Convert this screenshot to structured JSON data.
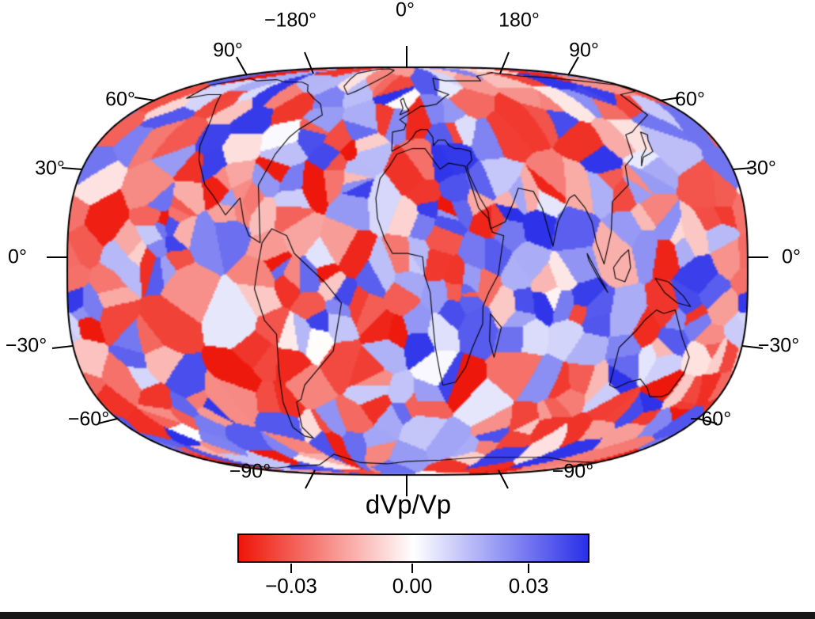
{
  "figure": {
    "title": "dVp/Vp",
    "background": "#ffffff"
  },
  "map": {
    "labels": {
      "top": [
        "−180°",
        "0°",
        "180°"
      ],
      "left": [
        "90°",
        "60°",
        "30°",
        "0°",
        "−30°",
        "−60°",
        "−90°"
      ],
      "right": [
        "90°",
        "60°",
        "30°",
        "0°",
        "−30°",
        "−60°",
        "−90°"
      ]
    }
  },
  "colorbar": {
    "label": "dVp/Vp",
    "ticks": [
      "−0.03",
      "0.00",
      "0.03"
    ],
    "min_color": "#ee1509",
    "mid_color": "#ffffff",
    "max_color": "#2a2fe9"
  },
  "chart_data": {
    "type": "heatmap",
    "title": "dVp/Vp",
    "projection": "global elliptical projection, central meridian 0°, flattened poles",
    "lon_ticks": [
      -180,
      0,
      180
    ],
    "lat_ticks": [
      90,
      60,
      30,
      0,
      -30,
      -60,
      -90
    ],
    "colorbar": {
      "label": "dVp/Vp",
      "tick_values": [
        -0.03,
        0.0,
        0.03
      ],
      "range": [
        -0.044,
        0.044
      ],
      "colormap": "polar red-white-blue (negative = red, positive = blue)"
    },
    "content": "Voronoi-cell mosaic of P-wave velocity perturbations dVp/Vp covering the globe, with world coastlines overlaid in black; cells saturate to deep red/blue with pale cells interspersed",
    "mosaic": {
      "cell_count": 430,
      "seed": 11,
      "lat_weight": 1.6,
      "value_exponent": 0.7
    }
  },
  "coastlines": [
    [
      [
        -168,
        66
      ],
      [
        -160,
        58
      ],
      [
        -150,
        60
      ],
      [
        -140,
        60
      ],
      [
        -132,
        55
      ],
      [
        -124,
        48
      ],
      [
        -120,
        38
      ],
      [
        -117,
        33
      ],
      [
        -110,
        25
      ],
      [
        -105,
        22
      ],
      [
        -97,
        16
      ],
      [
        -90,
        21
      ],
      [
        -87,
        14
      ],
      [
        -84,
        10
      ],
      [
        -78,
        8
      ],
      [
        -81,
        25
      ],
      [
        -75,
        35
      ],
      [
        -70,
        41
      ],
      [
        -66,
        44
      ],
      [
        -55,
        50
      ],
      [
        -60,
        55
      ],
      [
        -68,
        58
      ],
      [
        -78,
        62
      ],
      [
        -85,
        66
      ],
      [
        -95,
        68
      ],
      [
        -110,
        68
      ],
      [
        -125,
        70
      ],
      [
        -140,
        69
      ],
      [
        -155,
        71
      ],
      [
        -168,
        66
      ]
    ],
    [
      [
        -45,
        60
      ],
      [
        -53,
        65
      ],
      [
        -55,
        70
      ],
      [
        -60,
        76
      ],
      [
        -50,
        82
      ],
      [
        -35,
        83
      ],
      [
        -20,
        80
      ],
      [
        -22,
        74
      ],
      [
        -30,
        68
      ],
      [
        -40,
        62
      ],
      [
        -45,
        60
      ]
    ],
    [
      [
        -77,
        8
      ],
      [
        -79,
        2
      ],
      [
        -81,
        -5
      ],
      [
        -76,
        -14
      ],
      [
        -70,
        -18
      ],
      [
        -71,
        -30
      ],
      [
        -73,
        -40
      ],
      [
        -74,
        -50
      ],
      [
        -70,
        -54
      ],
      [
        -65,
        -55
      ],
      [
        -68,
        -50
      ],
      [
        -65,
        -40
      ],
      [
        -62,
        -39
      ],
      [
        -58,
        -34
      ],
      [
        -48,
        -28
      ],
      [
        -40,
        -23
      ],
      [
        -35,
        -9
      ],
      [
        -44,
        -3
      ],
      [
        -50,
        0
      ],
      [
        -60,
        5
      ],
      [
        -64,
        10
      ],
      [
        -72,
        12
      ],
      [
        -77,
        8
      ]
    ],
    [
      [
        -6,
        35
      ],
      [
        -10,
        31
      ],
      [
        -15,
        27
      ],
      [
        -17,
        21
      ],
      [
        -16,
        15
      ],
      [
        -12,
        9
      ],
      [
        -8,
        5
      ],
      [
        0,
        5
      ],
      [
        8,
        4
      ],
      [
        9,
        -1
      ],
      [
        12,
        -6
      ],
      [
        13,
        -12
      ],
      [
        15,
        -22
      ],
      [
        18,
        -30
      ],
      [
        20,
        -34
      ],
      [
        27,
        -33
      ],
      [
        32,
        -28
      ],
      [
        35,
        -22
      ],
      [
        40,
        -15
      ],
      [
        40,
        -10
      ],
      [
        43,
        -6
      ],
      [
        48,
        -1
      ],
      [
        51,
        10
      ],
      [
        45,
        11
      ],
      [
        43,
        15
      ],
      [
        38,
        18
      ],
      [
        35,
        24
      ],
      [
        32,
        31
      ],
      [
        23,
        32
      ],
      [
        18,
        30
      ],
      [
        10,
        37
      ],
      [
        3,
        37
      ],
      [
        -6,
        35
      ]
    ],
    [
      [
        -9,
        36
      ],
      [
        -9,
        43
      ],
      [
        -2,
        44
      ],
      [
        -1,
        46
      ],
      [
        -5,
        48
      ],
      [
        2,
        51
      ],
      [
        9,
        54
      ],
      [
        13,
        54
      ],
      [
        20,
        55
      ],
      [
        28,
        59
      ],
      [
        31,
        60
      ],
      [
        22,
        63
      ],
      [
        25,
        71
      ],
      [
        35,
        69
      ],
      [
        50,
        69
      ],
      [
        68,
        69
      ],
      [
        73,
        73
      ],
      [
        90,
        75
      ],
      [
        105,
        77
      ],
      [
        120,
        73
      ],
      [
        140,
        72
      ],
      [
        160,
        69
      ],
      [
        178,
        66
      ],
      [
        178,
        62
      ],
      [
        160,
        60
      ],
      [
        155,
        50
      ],
      [
        140,
        45
      ],
      [
        135,
        43
      ],
      [
        130,
        42
      ],
      [
        127,
        34
      ],
      [
        121,
        31
      ],
      [
        120,
        25
      ],
      [
        110,
        20
      ],
      [
        108,
        11
      ],
      [
        104,
        2
      ],
      [
        100,
        8
      ],
      [
        98,
        14
      ],
      [
        95,
        18
      ],
      [
        90,
        22
      ],
      [
        87,
        21
      ],
      [
        80,
        14
      ],
      [
        77,
        7
      ],
      [
        72,
        18
      ],
      [
        68,
        23
      ],
      [
        60,
        24
      ],
      [
        57,
        20
      ],
      [
        52,
        14
      ],
      [
        44,
        12
      ],
      [
        43,
        17
      ],
      [
        39,
        21
      ],
      [
        34,
        28
      ],
      [
        33,
        31
      ],
      [
        36,
        33
      ],
      [
        36,
        36
      ],
      [
        30,
        37
      ],
      [
        27,
        37
      ],
      [
        24,
        38
      ],
      [
        22,
        40
      ],
      [
        18,
        40
      ],
      [
        15,
        38
      ],
      [
        15,
        41
      ],
      [
        12,
        44
      ],
      [
        8,
        44
      ],
      [
        5,
        43
      ],
      [
        3,
        41
      ],
      [
        0,
        39
      ],
      [
        -6,
        37
      ],
      [
        -9,
        36
      ]
    ],
    [
      [
        114,
        -22
      ],
      [
        114,
        -34
      ],
      [
        118,
        -35
      ],
      [
        124,
        -33
      ],
      [
        130,
        -32
      ],
      [
        136,
        -35
      ],
      [
        140,
        -38
      ],
      [
        147,
        -38
      ],
      [
        150,
        -37
      ],
      [
        153,
        -30
      ],
      [
        153,
        -25
      ],
      [
        147,
        -19
      ],
      [
        142,
        -11
      ],
      [
        136,
        -12
      ],
      [
        132,
        -11
      ],
      [
        126,
        -14
      ],
      [
        122,
        -17
      ],
      [
        114,
        -22
      ]
    ],
    [
      [
        -180,
        -70
      ],
      [
        -150,
        -75
      ],
      [
        -120,
        -73
      ],
      [
        -90,
        -72
      ],
      [
        -60,
        -64
      ],
      [
        -45,
        -70
      ],
      [
        -20,
        -71
      ],
      [
        0,
        -69
      ],
      [
        30,
        -68
      ],
      [
        60,
        -66
      ],
      [
        90,
        -66
      ],
      [
        120,
        -66
      ],
      [
        150,
        -69
      ],
      [
        180,
        -70
      ]
    ],
    [
      [
        44,
        -12
      ],
      [
        50,
        -16
      ],
      [
        47,
        -25
      ],
      [
        44,
        -20
      ],
      [
        44,
        -12
      ]
    ],
    [
      [
        130,
        31
      ],
      [
        133,
        34
      ],
      [
        137,
        35
      ],
      [
        140,
        36
      ],
      [
        141,
        40
      ],
      [
        143,
        42
      ],
      [
        140,
        43
      ],
      [
        137,
        37
      ],
      [
        132,
        34
      ],
      [
        130,
        31
      ]
    ],
    [
      [
        -5,
        50
      ],
      [
        -3,
        53
      ],
      [
        -5,
        57
      ],
      [
        -3,
        58
      ],
      [
        -1,
        54
      ],
      [
        1,
        52
      ],
      [
        -5,
        50
      ]
    ],
    [
      [
        131,
        -2
      ],
      [
        138,
        -3
      ],
      [
        146,
        -7
      ],
      [
        150,
        -10
      ],
      [
        143,
        -9
      ],
      [
        136,
        -6
      ],
      [
        131,
        -2
      ]
    ],
    [
      [
        109,
        1
      ],
      [
        113,
        4
      ],
      [
        117,
        6
      ],
      [
        118,
        1
      ],
      [
        115,
        -3
      ],
      [
        110,
        -2
      ],
      [
        109,
        1
      ]
    ],
    [
      [
        95,
        5
      ],
      [
        100,
        0
      ],
      [
        104,
        -4
      ],
      [
        106,
        -6
      ],
      [
        101,
        -2
      ],
      [
        96,
        3
      ],
      [
        95,
        5
      ]
    ]
  ]
}
